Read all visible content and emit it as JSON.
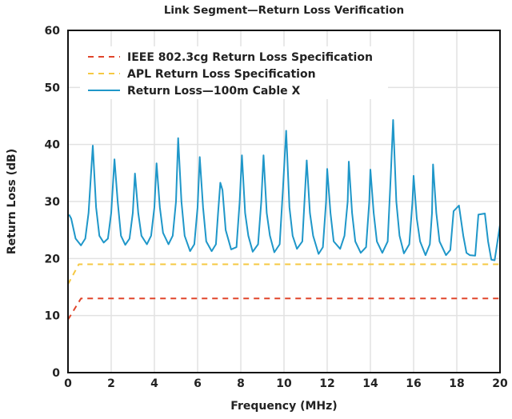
{
  "chart_data": {
    "type": "line",
    "title": "Link Segment—Return Loss Verification",
    "xlabel": "Frequency (MHz)",
    "ylabel": "Return Loss (dB)",
    "xlim": [
      0,
      20
    ],
    "ylim": [
      0,
      60
    ],
    "xticks": [
      0,
      2,
      4,
      6,
      8,
      10,
      12,
      14,
      16,
      18,
      20
    ],
    "yticks": [
      0,
      10,
      20,
      30,
      40,
      50,
      60
    ],
    "grid": true,
    "legend_position": "top-left",
    "series": [
      {
        "name": "IEEE 802.3cg Return Loss Specification",
        "color": "#e0452b",
        "style": "dashed",
        "x": [
          0,
          0.6,
          20
        ],
        "y": [
          9.3,
          13,
          13
        ]
      },
      {
        "name": "APL Return Loss Specification",
        "color": "#f5c842",
        "style": "dashed",
        "x": [
          0,
          0.5,
          20
        ],
        "y": [
          15.5,
          19,
          19
        ]
      },
      {
        "name": "Return Loss—100m Cable X",
        "color": "#1f97c9",
        "style": "solid",
        "x": [
          0.05,
          0.15,
          0.35,
          0.6,
          0.8,
          0.95,
          1.15,
          1.3,
          1.45,
          1.65,
          1.85,
          2.0,
          2.15,
          2.3,
          2.45,
          2.65,
          2.85,
          3.0,
          3.1,
          3.25,
          3.4,
          3.65,
          3.85,
          4.0,
          4.1,
          4.25,
          4.4,
          4.65,
          4.85,
          5.0,
          5.1,
          5.25,
          5.4,
          5.65,
          5.85,
          6.0,
          6.1,
          6.25,
          6.4,
          6.65,
          6.85,
          6.95,
          7.05,
          7.15,
          7.3,
          7.55,
          7.8,
          7.95,
          8.05,
          8.2,
          8.35,
          8.55,
          8.8,
          8.95,
          9.05,
          9.2,
          9.35,
          9.55,
          9.8,
          9.95,
          10.1,
          10.25,
          10.4,
          10.6,
          10.85,
          10.95,
          11.05,
          11.2,
          11.35,
          11.6,
          11.8,
          11.95,
          12.0,
          12.15,
          12.3,
          12.6,
          12.8,
          12.95,
          13.0,
          13.15,
          13.3,
          13.55,
          13.8,
          13.95,
          14.0,
          14.15,
          14.3,
          14.55,
          14.8,
          14.95,
          15.05,
          15.2,
          15.35,
          15.55,
          15.8,
          15.95,
          16.0,
          16.15,
          16.3,
          16.55,
          16.75,
          16.85,
          16.9,
          17.05,
          17.2,
          17.5,
          17.7,
          17.85,
          18.1,
          18.3,
          18.45,
          18.6,
          18.85,
          19.0,
          19.3,
          19.45,
          19.6,
          19.75,
          20.0
        ],
        "y": [
          27.7,
          27.0,
          23.5,
          22.3,
          23.5,
          28,
          39.8,
          29,
          24,
          22.8,
          23.5,
          28,
          37.4,
          30,
          24,
          22.4,
          23.5,
          28,
          34.9,
          28,
          24,
          22.5,
          24,
          29,
          36.7,
          29,
          24.5,
          22.5,
          24,
          30,
          41.1,
          30,
          24,
          21.3,
          22.5,
          29,
          37.8,
          29,
          23,
          21.3,
          22.5,
          28,
          33.3,
          32,
          25,
          21.6,
          22,
          30,
          38.1,
          28,
          24,
          21.2,
          22.5,
          30,
          38.1,
          28,
          24,
          21.1,
          22.5,
          32,
          42.4,
          29,
          24,
          21.7,
          23,
          30,
          37.2,
          28,
          24,
          20.8,
          22,
          30,
          35.7,
          28,
          23,
          21.7,
          24,
          30,
          37.0,
          28,
          23,
          21.0,
          22,
          30,
          35.6,
          28,
          23,
          21.0,
          23,
          35,
          44.3,
          30,
          24,
          20.9,
          22.5,
          30,
          34.5,
          27,
          23,
          20.6,
          22.5,
          28,
          36.5,
          28,
          23,
          20.6,
          21.5,
          28.3,
          29.3,
          24,
          21,
          20.6,
          20.5,
          27.7,
          27.9,
          23,
          19.8,
          19.7,
          25.9
        ]
      }
    ]
  }
}
